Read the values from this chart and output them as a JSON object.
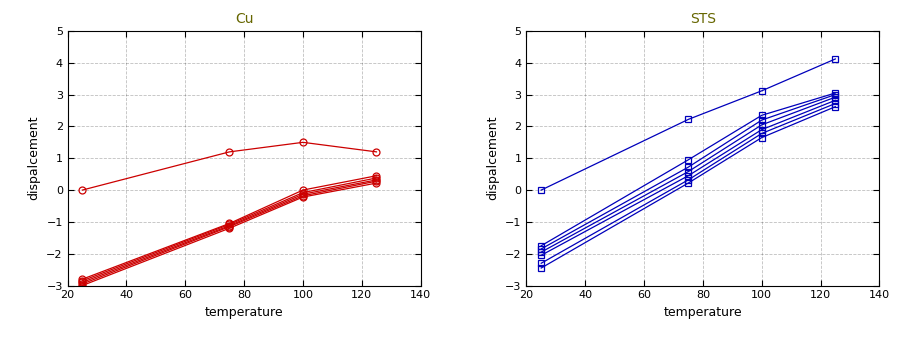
{
  "title_left": "Cu",
  "title_right": "STS",
  "xlabel": "temperature",
  "ylabel": "dispalcement",
  "xlim": [
    20,
    140
  ],
  "ylim": [
    -3,
    5
  ],
  "xticks": [
    20,
    40,
    60,
    80,
    100,
    120,
    140
  ],
  "yticks": [
    -3,
    -2,
    -1,
    0,
    1,
    2,
    3,
    4,
    5
  ],
  "color_left": "#cc0000",
  "color_right": "#0000bb",
  "left_series": [
    {
      "x": [
        25,
        75,
        100,
        125
      ],
      "y": [
        0.0,
        1.2,
        1.5,
        1.2
      ]
    },
    {
      "x": [
        25,
        75,
        100,
        125
      ],
      "y": [
        -2.8,
        -1.05,
        0.0,
        0.45
      ]
    },
    {
      "x": [
        25,
        75,
        100,
        125
      ],
      "y": [
        -2.85,
        -1.08,
        -0.08,
        0.38
      ]
    },
    {
      "x": [
        25,
        75,
        100,
        125
      ],
      "y": [
        -2.9,
        -1.12,
        -0.13,
        0.32
      ]
    },
    {
      "x": [
        25,
        75,
        100,
        125
      ],
      "y": [
        -2.95,
        -1.15,
        -0.18,
        0.28
      ]
    },
    {
      "x": [
        25,
        75,
        100,
        125
      ],
      "y": [
        -3.0,
        -1.2,
        -0.22,
        0.22
      ]
    }
  ],
  "right_series": [
    {
      "x": [
        25,
        75,
        100,
        125
      ],
      "y": [
        0.0,
        2.22,
        3.12,
        4.12
      ]
    },
    {
      "x": [
        25,
        75,
        100,
        125
      ],
      "y": [
        -1.75,
        0.95,
        2.35,
        3.05
      ]
    },
    {
      "x": [
        25,
        75,
        100,
        125
      ],
      "y": [
        -1.85,
        0.72,
        2.2,
        3.0
      ]
    },
    {
      "x": [
        25,
        75,
        100,
        125
      ],
      "y": [
        -1.95,
        0.58,
        2.05,
        2.92
      ]
    },
    {
      "x": [
        25,
        75,
        100,
        125
      ],
      "y": [
        -2.05,
        0.45,
        1.9,
        2.82
      ]
    },
    {
      "x": [
        25,
        75,
        100,
        125
      ],
      "y": [
        -2.3,
        0.32,
        1.78,
        2.72
      ]
    },
    {
      "x": [
        25,
        75,
        100,
        125
      ],
      "y": [
        -2.45,
        0.22,
        1.65,
        2.62
      ]
    }
  ],
  "marker_left": "o",
  "marker_right": "s",
  "linewidth": 0.9,
  "markersize": 5,
  "title_fontsize": 10,
  "label_fontsize": 9,
  "tick_fontsize": 8,
  "title_color": "#666600",
  "bg_color": "#ffffff",
  "grid_color": "#000000",
  "grid_alpha": 0.25,
  "grid_linewidth": 0.6
}
